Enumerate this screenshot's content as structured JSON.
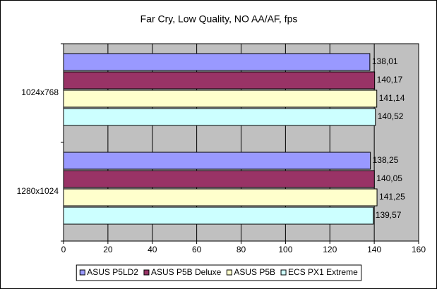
{
  "chart_data": {
    "type": "bar",
    "orientation": "horizontal",
    "title": "Far Cry, Low Quality, NO AA/AF, fps",
    "categories": [
      "1024x768",
      "1280x1024"
    ],
    "series": [
      {
        "name": "ASUS P5LD2",
        "color": "#9999ff",
        "values": [
          138.01,
          138.25
        ],
        "value_labels": [
          "138,01",
          "138,25"
        ]
      },
      {
        "name": "ASUS P5B Deluxe",
        "color": "#993366",
        "values": [
          140.17,
          140.05
        ],
        "value_labels": [
          "140,17",
          "140,05"
        ]
      },
      {
        "name": "ASUS P5B",
        "color": "#ffffcc",
        "values": [
          141.14,
          141.25
        ],
        "value_labels": [
          "141,14",
          "141,25"
        ]
      },
      {
        "name": "ECS PX1 Extreme",
        "color": "#ccffff",
        "values": [
          140.52,
          139.57
        ],
        "value_labels": [
          "140,52",
          "139,57"
        ]
      }
    ],
    "xlim": [
      0,
      160
    ],
    "xticks": [
      0,
      20,
      40,
      60,
      80,
      100,
      120,
      140,
      160
    ],
    "grid": true,
    "legend": "bottom"
  }
}
